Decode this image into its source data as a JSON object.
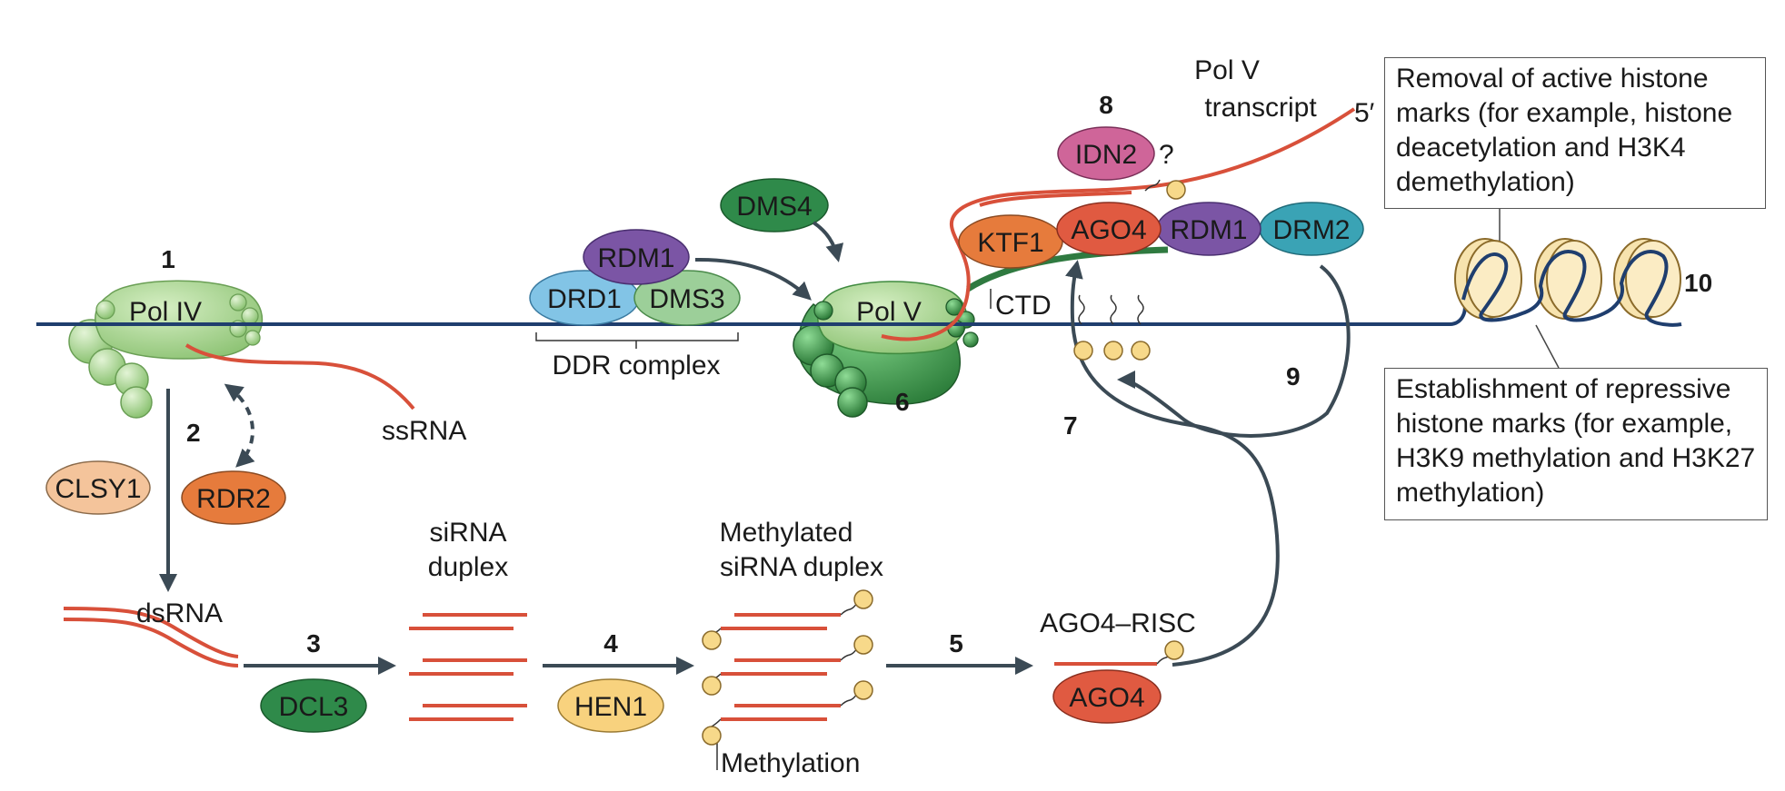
{
  "steps": {
    "s1": "1",
    "s2": "2",
    "s3": "3",
    "s4": "4",
    "s5": "5",
    "s6": "6",
    "s7": "7",
    "s8": "8",
    "s9": "9",
    "s10": "10"
  },
  "proteins": {
    "pol4": "Pol IV",
    "pol5": "Pol V",
    "clsy1": "CLSY1",
    "rdr2": "RDR2",
    "dcl3": "DCL3",
    "hen1": "HEN1",
    "ago4_risc": "AGO4",
    "ago4_complex": "AGO4",
    "rdm1_ddr": "RDM1",
    "drd1": "DRD1",
    "dms3": "DMS3",
    "dms4": "DMS4",
    "idn2": "IDN2",
    "ktf1": "KTF1",
    "rdm1_complex": "RDM1",
    "drm2": "DRM2"
  },
  "labels": {
    "ssrna": "ssRNA",
    "dsrna": "dsRNA",
    "sirna_duplex_1": "siRNA",
    "sirna_duplex_2": "duplex",
    "meth_duplex_1": "Methylated",
    "meth_duplex_2": "siRNA duplex",
    "methylation": "Methylation",
    "ago4_risc": "AGO4–RISC",
    "ddr_complex": "DDR complex",
    "ctd": "CTD",
    "polv_transcript_1": "Pol V",
    "polv_transcript_2": "transcript",
    "five_prime": "5′",
    "question": "?"
  },
  "boxes": {
    "removal": "Removal of active histone marks (for example, histone deacetylation and H3K4 demethylation)",
    "establishment": "Establishment of repressive histone marks (for example, H3K9 methylation and H3K27 methylation)"
  },
  "colors": {
    "dna": "#1f3e6e",
    "rna": "#d8503a",
    "arrow": "#3b4a55",
    "pol_light": "#a9d28f",
    "pol_dark": "#3f9a4e",
    "methyl": "#f7d98a",
    "nucleosome": "#f7e3ae"
  }
}
